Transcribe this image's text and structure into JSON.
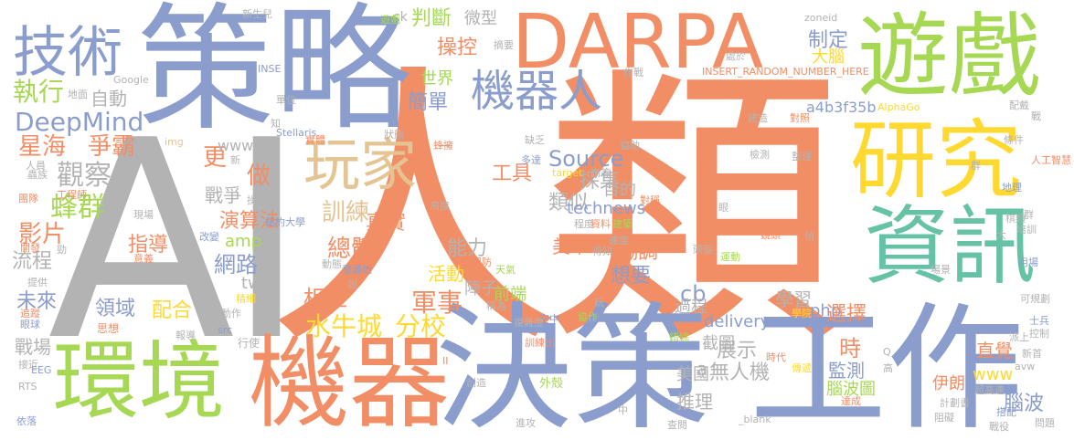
{
  "palette": {
    "orange": "#f28e65",
    "blue": "#8b9dcc",
    "green": "#a6d854",
    "yellow": "#ffd92f",
    "tan": "#e5c494",
    "gray": "#b3b3b3",
    "pink": "#e78ac3",
    "teal": "#66c2a5"
  },
  "words": {
    "rencai": "人類",
    "ai": "AI",
    "celue": "策略",
    "darpa": "DARPA",
    "youxi": "遊戲",
    "jishu": "技術",
    "yanjiu": "研究",
    "zixun": "資訊",
    "gongzuo": "工作",
    "juece": "決策",
    "jiqi": "機器",
    "huanjing": "環境",
    "wanjia": "玩家",
    "jiqiren": "機器人",
    "deepmind": "DeepMind",
    "zhixing": "執行",
    "zidong": "自動",
    "xinghai": "星海",
    "zhengba": "爭霸",
    "guancha": "觀察",
    "zhanzheng": "戰爭",
    "fengqun": "蜂群",
    "yingpian": "影片",
    "liucheng": "流程",
    "weilai": "未來",
    "zhanchang": "戰場",
    "shuiniu": "水牛城",
    "fenxiao": "分校",
    "junshi": "軍事",
    "xiangsi": "類似",
    "source": "Source",
    "technews": "technews",
    "gongju": "工具",
    "caiji": "採集",
    "www5": "www5",
    "tw": "tw",
    "amp": "amp",
    "php": "php",
    "cb": "cb",
    "delivery": "delivery",
    "www": "www",
    "a4b": "a4b3f35b",
    "panduan": "判斷",
    "caokong": "操控",
    "weixing": "微型",
    "zhiding": "制定",
    "danao": "大腦",
    "jiandan": "簡單",
    "shijie": "世界",
    "xunlian": "訓練",
    "zhenshi": "真實",
    "zongti": "總體",
    "yansuanfa": "演算法",
    "zhidao": "指導",
    "wanglu": "網路",
    "lingyu": "領域",
    "peihe": "配合",
    "xiangu": "相互",
    "nengli": "能力",
    "huodong": "活動",
    "meijun": "美軍",
    "xietiao": "協調",
    "xiangyao": "想要",
    "xuexi": "學習",
    "xuanze": "選擇",
    "shi": "時",
    "jiance": "監測",
    "naobotu": "腦波圖",
    "zhijue": "直覺",
    "naobo": "腦波",
    "yilang": "伊朗",
    "guocheng": "過程",
    "jietu": "截圖",
    "zhanshi": "展示",
    "wurenji": "無人機",
    "meiguo": "美國",
    "tuili": "推理",
    "mude": "目的",
    "qianduan": "前端",
    "zhenzi": "陣子",
    "zuo": "做",
    "geng": "更",
    "a": "a",
    "small": [
      "新生兒",
      "ck",
      "遊戲",
      "zoneid",
      "地面",
      "Google",
      "INSE",
      "INSERT_RANDOM_NUMBER_HERE",
      "AlphaGo",
      "img",
      "Stellaris",
      "狀態",
      "實體",
      "蟲族",
      "工程師",
      "團隊",
      "現場",
      "紐約大學",
      "改變",
      "操作",
      "規劃",
      "發源地",
      "動態",
      "開發",
      "意義",
      "證明",
      "提供",
      "說",
      "精細",
      "思想",
      "報導",
      "src",
      "行使",
      "EEG",
      "RTS",
      "依落",
      "進攻",
      "接近",
      "眼球",
      "動作",
      "追蹤",
      "一",
      "缺乏",
      "多達",
      "天氣",
      "國防",
      "target",
      "高等",
      "程度",
      "資料",
      "建築",
      "速度",
      "得知",
      "運動",
      "協作",
      "學院",
      "空中",
      "稱為",
      "創造",
      "訓練出",
      "錯綜",
      "外殼",
      "時代",
      "傳遞",
      "查閱",
      "_blank",
      "達成",
      "計劃書",
      "超高速",
      "可規劃",
      "士兵",
      "控制",
      "派上",
      "用場",
      "場景",
      "人工智慧",
      "條件",
      "整理",
      "地理",
      "棋類",
      "配戴",
      "摘要",
      "作戰",
      "處於",
      "建造",
      "對照",
      "檢測",
      "協助",
      "對稱",
      "鏡頭",
      "頭盔",
      "培訓",
      "阻礙",
      "問題",
      "戰役",
      "搭配",
      "avw",
      "新首",
      "蜂擁",
      "單位",
      "知",
      "新",
      "人員",
      "高度",
      "複雜度",
      "玩",
      "群",
      "眼",
      "中",
      "II",
      "Q",
      "高",
      "戰",
      "群",
      "大",
      "勁",
      "領",
      "偵",
      "局",
      "用",
      "走",
      "有"
    ]
  }
}
